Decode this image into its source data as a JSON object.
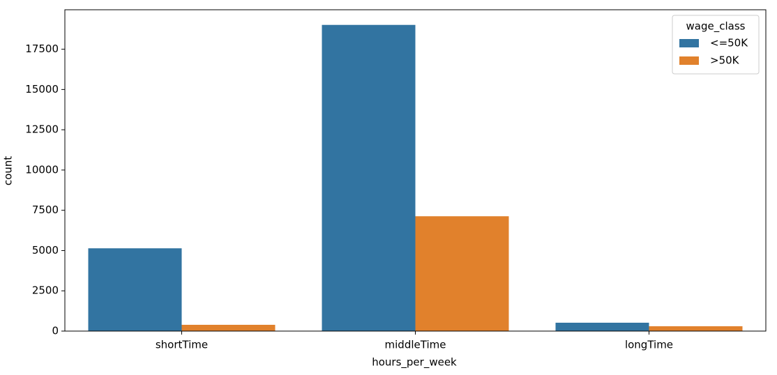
{
  "chart_data": {
    "type": "bar",
    "x_label": "hours_per_week",
    "y_label": "count",
    "categories": [
      "shortTime",
      "middleTime",
      "longTime"
    ],
    "legend_title": "wage_class",
    "legend_position": "upper right",
    "series": [
      {
        "name": "<=50K",
        "color": "#3274a1",
        "values": [
          5140,
          19010,
          520
        ]
      },
      {
        "name": ">50K",
        "color": "#e1812c",
        "values": [
          390,
          7130,
          300
        ]
      }
    ],
    "ylim": [
      0,
      19950
    ],
    "yticks": [
      0,
      2500,
      5000,
      7500,
      10000,
      12500,
      15000,
      17500
    ],
    "grid": false
  }
}
